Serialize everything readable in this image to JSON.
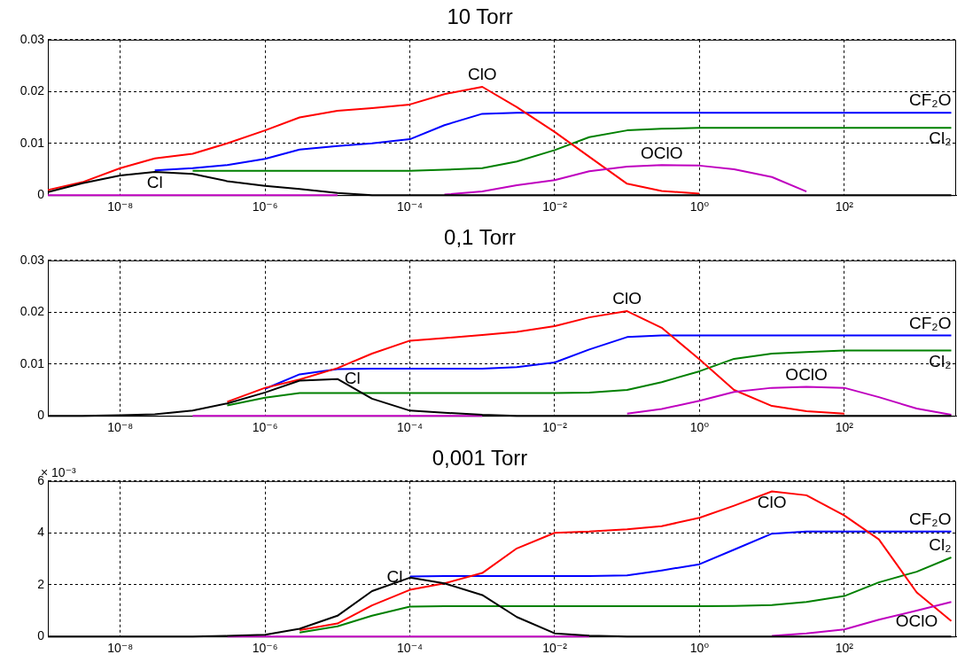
{
  "chart_data": [
    {
      "type": "line",
      "title": "10 Torr",
      "log": "x",
      "grid": true,
      "x": [
        1e-09,
        3e-09,
        1e-08,
        3e-08,
        1e-07,
        3e-07,
        1e-06,
        3e-06,
        1e-05,
        3e-05,
        0.0001,
        0.0003,
        0.001,
        0.003,
        0.01,
        0.03,
        0.1,
        0.3,
        1,
        3,
        10,
        30,
        100,
        300,
        1000,
        3000
      ],
      "xlim": [
        1e-09,
        3500
      ],
      "xticks": [
        {
          "value": 1e-08,
          "label": "10⁻⁸"
        },
        {
          "value": 1e-06,
          "label": "10⁻⁶"
        },
        {
          "value": 0.0001,
          "label": "10⁻⁴"
        },
        {
          "value": 0.01,
          "label": "10⁻²"
        },
        {
          "value": 1,
          "label": "10⁰"
        },
        {
          "value": 100,
          "label": "10²"
        }
      ],
      "ylim": [
        0,
        0.03
      ],
      "yticks": [
        0,
        0.01,
        0.02,
        0.03
      ],
      "series": [
        {
          "name": "Cl",
          "color": "#000000",
          "values": [
            0.0006,
            0.0023,
            0.0038,
            0.0045,
            0.0041,
            0.0027,
            0.0018,
            0.0012,
            0.0004,
            0,
            0,
            0,
            0,
            0,
            0,
            0,
            0,
            0,
            0,
            0,
            0,
            0,
            0,
            0,
            0,
            0
          ]
        },
        {
          "name": "OClO",
          "color": "#bf00bf",
          "values": [
            0,
            0,
            0,
            0,
            0,
            0,
            0,
            0,
            0,
            null,
            null,
            0.0001,
            0.0007,
            0.0019,
            0.0029,
            0.0046,
            0.0055,
            0.0058,
            0.0057,
            0.005,
            0.0035,
            0.0007,
            null,
            null,
            null,
            null
          ]
        },
        {
          "name": "ClO",
          "color": "#ff0000",
          "values": [
            0.001,
            0.0025,
            0.0052,
            0.0071,
            0.008,
            0.01,
            0.0125,
            0.015,
            0.0163,
            0.0168,
            0.0175,
            0.0195,
            0.0209,
            0.017,
            0.0122,
            0.0074,
            0.0022,
            0.0008,
            0.0003,
            null,
            null,
            null,
            null,
            null,
            null,
            null
          ]
        },
        {
          "name": "CF₂O",
          "color": "#0000ff",
          "values": [
            null,
            null,
            null,
            0.0048,
            0.0052,
            0.0058,
            0.007,
            0.0088,
            0.0095,
            0.01,
            0.0108,
            0.0135,
            0.0157,
            0.0159,
            0.0159,
            0.0159,
            0.0159,
            0.0159,
            0.0159,
            0.0159,
            0.0159,
            0.0159,
            0.0159,
            0.0159,
            0.0159,
            0.0159
          ]
        },
        {
          "name": "Cl₂",
          "color": "#008000",
          "values": [
            null,
            null,
            null,
            null,
            0.0047,
            0.0047,
            0.0047,
            0.0047,
            0.0047,
            0.0047,
            0.0047,
            0.0049,
            0.0052,
            0.0065,
            0.0087,
            0.0112,
            0.0125,
            0.0128,
            0.013,
            0.013,
            0.013,
            0.013,
            0.013,
            0.013,
            0.013,
            0.013
          ]
        }
      ]
    },
    {
      "type": "line",
      "title": "0,1 Torr",
      "log": "x",
      "grid": true,
      "x": [
        1e-09,
        3e-09,
        1e-08,
        3e-08,
        1e-07,
        3e-07,
        1e-06,
        3e-06,
        1e-05,
        3e-05,
        0.0001,
        0.0003,
        0.001,
        0.003,
        0.01,
        0.03,
        0.1,
        0.3,
        1,
        3,
        10,
        30,
        100,
        300,
        1000,
        3000
      ],
      "xlim": [
        1e-09,
        3500
      ],
      "xticks": [
        {
          "value": 1e-08,
          "label": "10⁻⁸"
        },
        {
          "value": 1e-06,
          "label": "10⁻⁶"
        },
        {
          "value": 0.0001,
          "label": "10⁻⁴"
        },
        {
          "value": 0.01,
          "label": "10⁻²"
        },
        {
          "value": 1,
          "label": "10⁰"
        },
        {
          "value": 100,
          "label": "10²"
        }
      ],
      "ylim": [
        0,
        0.03
      ],
      "yticks": [
        0,
        0.01,
        0.02,
        0.03
      ],
      "series": [
        {
          "name": "Cl",
          "color": "#000000",
          "values": [
            0,
            0,
            0.0001,
            0.0003,
            0.001,
            0.0024,
            0.0045,
            0.0068,
            0.0071,
            0.0033,
            0.001,
            0.0006,
            0.0002,
            0,
            0,
            0,
            0,
            0,
            0,
            0,
            0,
            0,
            0,
            0,
            0,
            0
          ]
        },
        {
          "name": "OClO",
          "color": "#bf00bf",
          "values": [
            null,
            null,
            null,
            null,
            0,
            0,
            0,
            0,
            0,
            0,
            0,
            0,
            0,
            null,
            null,
            null,
            0.0004,
            0.0013,
            0.0029,
            0.0046,
            0.0054,
            0.0056,
            0.0054,
            0.0036,
            0.0014,
            0.0002
          ]
        },
        {
          "name": "ClO",
          "color": "#ff0000",
          "values": [
            null,
            null,
            null,
            null,
            null,
            0.0027,
            0.0054,
            0.007,
            0.0092,
            0.012,
            0.0145,
            0.015,
            0.0156,
            0.0162,
            0.0173,
            0.019,
            0.0202,
            0.017,
            0.0109,
            0.005,
            0.0019,
            0.0009,
            0.0004,
            null,
            null,
            null
          ]
        },
        {
          "name": "CF₂O",
          "color": "#0000ff",
          "values": [
            null,
            null,
            null,
            null,
            null,
            null,
            0.0052,
            0.008,
            0.009,
            0.0091,
            0.0091,
            0.0091,
            0.0091,
            0.0094,
            0.0103,
            0.0128,
            0.0152,
            0.0155,
            0.0155,
            0.0155,
            0.0155,
            0.0155,
            0.0155,
            0.0155,
            0.0155,
            0.0155
          ]
        },
        {
          "name": "Cl₂",
          "color": "#008000",
          "values": [
            null,
            null,
            null,
            null,
            null,
            0.002,
            0.0035,
            0.0044,
            0.0044,
            0.0044,
            0.0044,
            0.0044,
            0.0044,
            0.0044,
            0.0044,
            0.0045,
            0.005,
            0.0065,
            0.0086,
            0.011,
            0.012,
            0.0123,
            0.0126,
            0.0126,
            0.0126,
            0.0126
          ]
        }
      ]
    },
    {
      "type": "line",
      "title": "0,001 Torr",
      "log": "x",
      "grid": true,
      "x": [
        1e-09,
        3e-09,
        1e-08,
        3e-08,
        1e-07,
        3e-07,
        1e-06,
        3e-06,
        1e-05,
        3e-05,
        0.0001,
        0.0003,
        0.001,
        0.003,
        0.01,
        0.03,
        0.1,
        0.3,
        1,
        3,
        10,
        30,
        100,
        300,
        1000,
        3000
      ],
      "xlim": [
        1e-09,
        3500
      ],
      "xticks": [
        {
          "value": 1e-08,
          "label": "10⁻⁸"
        },
        {
          "value": 1e-06,
          "label": "10⁻⁶"
        },
        {
          "value": 0.0001,
          "label": "10⁻⁴"
        },
        {
          "value": 0.01,
          "label": "10⁻²"
        },
        {
          "value": 1,
          "label": "10⁰"
        },
        {
          "value": 100,
          "label": "10²"
        }
      ],
      "ylim": [
        0,
        6
      ],
      "yticks": [
        0,
        2,
        4,
        6
      ],
      "series": [
        {
          "name": "Cl",
          "color": "#000000",
          "values": [
            0,
            0,
            0,
            0,
            0,
            0.02,
            0.07,
            0.3,
            0.8,
            1.75,
            2.27,
            2.05,
            1.6,
            0.75,
            0.12,
            0.03,
            0,
            0,
            0,
            0,
            0,
            0,
            0,
            0,
            0,
            0
          ]
        },
        {
          "name": "OClO",
          "color": "#bf00bf",
          "values": [
            null,
            null,
            null,
            null,
            null,
            0,
            0,
            0,
            0,
            0,
            0,
            0,
            0,
            0,
            0,
            0,
            null,
            null,
            null,
            null,
            0.02,
            0.12,
            0.27,
            0.65,
            1.0,
            1.33
          ]
        },
        {
          "name": "ClO",
          "color": "#ff0000",
          "values": [
            null,
            null,
            null,
            null,
            null,
            null,
            null,
            0.25,
            0.5,
            1.2,
            1.8,
            2.05,
            2.45,
            3.4,
            4.0,
            4.05,
            4.14,
            4.26,
            4.58,
            5.05,
            5.6,
            5.45,
            4.67,
            3.75,
            1.7,
            0.6
          ]
        },
        {
          "name": "CF₂O",
          "color": "#0000ff",
          "values": [
            null,
            null,
            null,
            null,
            null,
            null,
            null,
            null,
            null,
            null,
            2.32,
            2.33,
            2.33,
            2.33,
            2.33,
            2.33,
            2.36,
            2.55,
            2.79,
            3.35,
            3.97,
            4.05,
            4.05,
            4.05,
            4.05,
            4.05
          ]
        },
        {
          "name": "Cl₂",
          "color": "#008000",
          "values": [
            null,
            null,
            null,
            null,
            null,
            null,
            null,
            0.15,
            0.39,
            0.8,
            1.15,
            1.17,
            1.17,
            1.17,
            1.17,
            1.17,
            1.17,
            1.17,
            1.17,
            1.18,
            1.21,
            1.33,
            1.56,
            2.09,
            2.5,
            3.05
          ]
        }
      ],
      "annotations": [
        "× 10⁻³"
      ]
    }
  ]
}
